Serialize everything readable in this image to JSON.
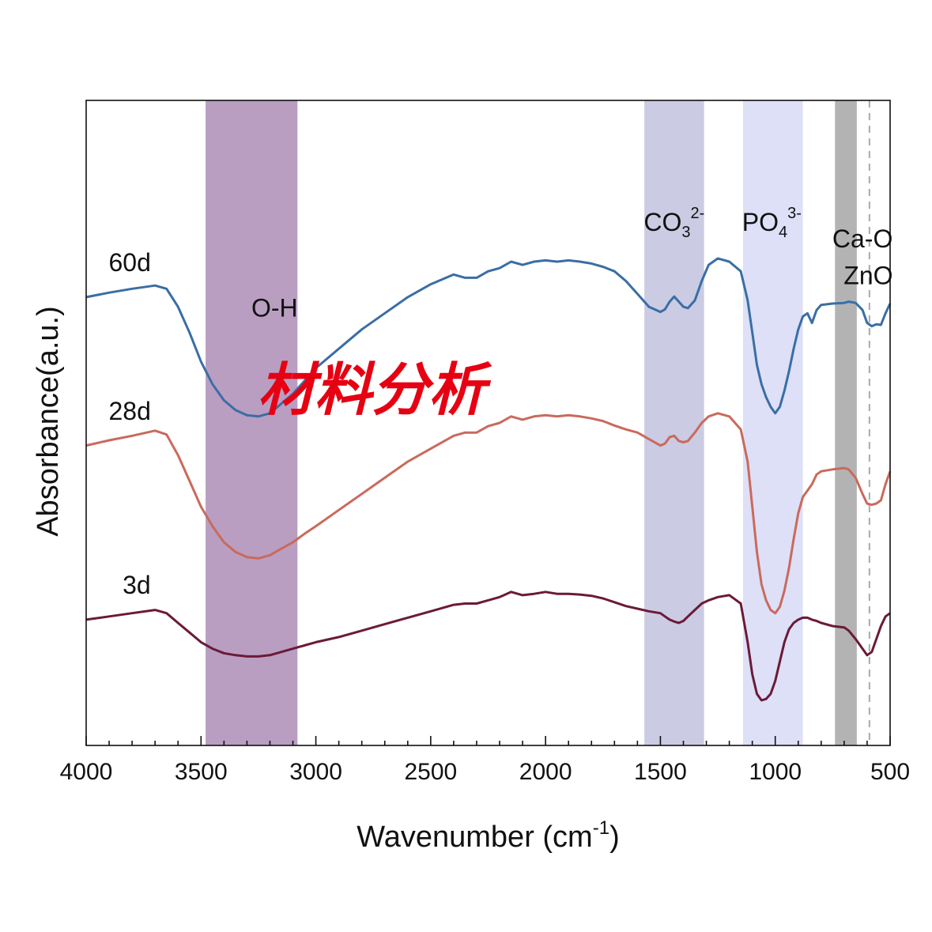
{
  "chart_data": {
    "type": "line",
    "title": "",
    "xlabel": "Wavenumber (cm",
    "xlabel_sup": "-1",
    "xlabel_end": ")",
    "ylabel": "Absorbance(a.u.)",
    "xlim": [
      4000,
      500
    ],
    "ylim": [
      0,
      100
    ],
    "x_ticks": [
      4000,
      3500,
      3000,
      2500,
      2000,
      1500,
      1000,
      500
    ],
    "x_tick_labels": [
      "4000",
      "3500",
      "3000",
      "2500",
      "2000",
      "1500",
      "1000",
      "500"
    ],
    "grid": false,
    "bands": [
      {
        "name": "oh-band",
        "from": 3480,
        "to": 3080,
        "color": "#b99ec2",
        "label": "O-H",
        "label_sub": "",
        "label_sup": "",
        "label_x": 3180,
        "label_y": 66.5
      },
      {
        "name": "co3-band",
        "from": 1570,
        "to": 1310,
        "color": "#cbcbe3",
        "label": "CO",
        "label_sub": "3",
        "label_sup": "2-",
        "label_x": 1440,
        "label_y": 79.8
      },
      {
        "name": "po4-band",
        "from": 1140,
        "to": 880,
        "color": "#dde0f7",
        "label": "PO",
        "label_sub": "4",
        "label_sup": "3-",
        "label_x": 1015,
        "label_y": 79.8
      },
      {
        "name": "cao-zno-band",
        "from": 740,
        "to": 645,
        "color": "#b3b3b3",
        "label": "Ca-O",
        "label_sub": "",
        "label_sup": "",
        "label_x": 620,
        "label_y": 77.2
      }
    ],
    "extra_labels": [
      {
        "name": "zno-label",
        "text": "ZnO",
        "x": 595,
        "y": 71.5
      }
    ],
    "dashed_line": {
      "x": 590,
      "color": "#aaaaaa"
    },
    "series": [
      {
        "name": "60d",
        "color": "#3a6ea5",
        "label_x": 3810,
        "label_y": 73.5,
        "x": [
          4000,
          3900,
          3800,
          3700,
          3650,
          3600,
          3550,
          3500,
          3450,
          3400,
          3350,
          3300,
          3250,
          3200,
          3150,
          3100,
          3050,
          3000,
          2900,
          2800,
          2700,
          2600,
          2500,
          2400,
          2350,
          2300,
          2250,
          2200,
          2150,
          2100,
          2050,
          2000,
          1950,
          1900,
          1850,
          1800,
          1750,
          1700,
          1650,
          1600,
          1550,
          1500,
          1480,
          1460,
          1440,
          1420,
          1400,
          1380,
          1350,
          1320,
          1290,
          1250,
          1200,
          1150,
          1120,
          1100,
          1080,
          1060,
          1040,
          1020,
          1000,
          980,
          960,
          940,
          920,
          900,
          880,
          860,
          840,
          820,
          800,
          750,
          700,
          680,
          650,
          620,
          600,
          580,
          560,
          540,
          520,
          500
        ],
        "y": [
          69.5,
          70.2,
          70.8,
          71.3,
          70.8,
          68.0,
          64.0,
          59.5,
          56.0,
          53.5,
          52.0,
          51.2,
          51.0,
          51.5,
          53.0,
          54.5,
          56.5,
          58.5,
          61.5,
          64.5,
          67.0,
          69.5,
          71.5,
          73.0,
          72.5,
          72.5,
          73.5,
          74.0,
          75.0,
          74.5,
          75.0,
          75.2,
          75.0,
          75.2,
          75.0,
          74.7,
          74.2,
          73.5,
          72.0,
          70.0,
          68.0,
          67.2,
          67.6,
          68.8,
          69.6,
          68.8,
          68.0,
          67.8,
          69.0,
          72.0,
          74.5,
          75.5,
          75.0,
          73.5,
          69.0,
          64.0,
          59.0,
          56.0,
          54.0,
          52.5,
          51.5,
          52.5,
          55.0,
          58.0,
          61.5,
          64.5,
          66.5,
          67.0,
          65.5,
          67.5,
          68.3,
          68.5,
          68.6,
          68.8,
          68.6,
          67.5,
          65.5,
          65.0,
          65.3,
          65.2,
          67.0,
          68.5
        ]
      },
      {
        "name": "28d",
        "color": "#c96a5c",
        "label_x": 3810,
        "label_y": 50.5,
        "x": [
          4000,
          3900,
          3800,
          3700,
          3650,
          3600,
          3550,
          3500,
          3450,
          3400,
          3350,
          3300,
          3250,
          3200,
          3150,
          3100,
          3050,
          3000,
          2900,
          2800,
          2700,
          2600,
          2500,
          2400,
          2350,
          2300,
          2250,
          2200,
          2150,
          2100,
          2050,
          2000,
          1950,
          1900,
          1850,
          1800,
          1750,
          1700,
          1650,
          1600,
          1550,
          1500,
          1480,
          1460,
          1440,
          1420,
          1400,
          1380,
          1350,
          1320,
          1290,
          1250,
          1200,
          1150,
          1120,
          1100,
          1080,
          1060,
          1040,
          1020,
          1000,
          980,
          960,
          940,
          920,
          900,
          880,
          860,
          840,
          820,
          800,
          750,
          700,
          680,
          650,
          620,
          600,
          580,
          560,
          540,
          520,
          500
        ],
        "y": [
          46.5,
          47.3,
          48.0,
          48.8,
          48.2,
          45.0,
          41.0,
          37.0,
          34.0,
          31.5,
          30.0,
          29.2,
          29.0,
          29.5,
          30.5,
          31.5,
          32.8,
          34.0,
          36.5,
          39.0,
          41.5,
          44.0,
          46.0,
          48.0,
          48.5,
          48.5,
          49.5,
          50.0,
          51.0,
          50.5,
          51.0,
          51.2,
          51.0,
          51.2,
          51.0,
          50.7,
          50.3,
          49.6,
          49.0,
          48.5,
          47.5,
          46.5,
          46.8,
          47.8,
          48.0,
          47.2,
          47.0,
          47.2,
          48.5,
          50.0,
          51.0,
          51.5,
          51.0,
          49.0,
          44.0,
          37.0,
          30.0,
          25.0,
          22.5,
          21.0,
          20.5,
          21.5,
          24.0,
          27.5,
          32.0,
          36.0,
          38.5,
          39.5,
          40.5,
          42.0,
          42.5,
          42.8,
          43.0,
          42.8,
          41.5,
          39.0,
          37.5,
          37.3,
          37.5,
          38.0,
          40.5,
          42.5
        ]
      },
      {
        "name": "3d",
        "color": "#6b1a37",
        "label_x": 3780,
        "label_y": 23.5,
        "x": [
          4000,
          3900,
          3800,
          3700,
          3650,
          3600,
          3550,
          3500,
          3450,
          3400,
          3350,
          3300,
          3250,
          3200,
          3150,
          3100,
          3050,
          3000,
          2900,
          2800,
          2700,
          2600,
          2500,
          2400,
          2350,
          2300,
          2250,
          2200,
          2150,
          2100,
          2050,
          2000,
          1950,
          1900,
          1850,
          1800,
          1750,
          1700,
          1650,
          1600,
          1550,
          1500,
          1480,
          1460,
          1440,
          1420,
          1400,
          1380,
          1350,
          1320,
          1290,
          1250,
          1200,
          1150,
          1120,
          1100,
          1080,
          1060,
          1040,
          1020,
          1000,
          980,
          960,
          940,
          920,
          900,
          880,
          860,
          840,
          820,
          800,
          750,
          700,
          680,
          650,
          620,
          600,
          580,
          560,
          540,
          520,
          500
        ],
        "y": [
          19.5,
          20.0,
          20.5,
          21.0,
          20.5,
          19.0,
          17.5,
          16.0,
          15.0,
          14.3,
          14.0,
          13.8,
          13.8,
          14.0,
          14.5,
          15.0,
          15.5,
          16.0,
          16.8,
          17.8,
          18.8,
          19.8,
          20.8,
          21.8,
          22.0,
          22.0,
          22.5,
          23.0,
          23.8,
          23.3,
          23.5,
          23.8,
          23.5,
          23.5,
          23.4,
          23.2,
          22.8,
          22.2,
          21.6,
          21.2,
          20.8,
          20.5,
          20.0,
          19.5,
          19.2,
          19.0,
          19.3,
          20.0,
          21.0,
          22.0,
          22.5,
          23.0,
          23.3,
          22.0,
          16.0,
          11.0,
          8.0,
          7.0,
          7.2,
          8.0,
          10.0,
          13.0,
          16.0,
          18.0,
          19.0,
          19.5,
          19.8,
          19.8,
          19.5,
          19.3,
          19.0,
          18.5,
          18.3,
          17.8,
          16.5,
          15.0,
          14.0,
          14.5,
          16.5,
          18.5,
          20.0,
          20.5
        ]
      }
    ],
    "watermark": {
      "text": "材料分析",
      "color": "#e60012"
    }
  }
}
